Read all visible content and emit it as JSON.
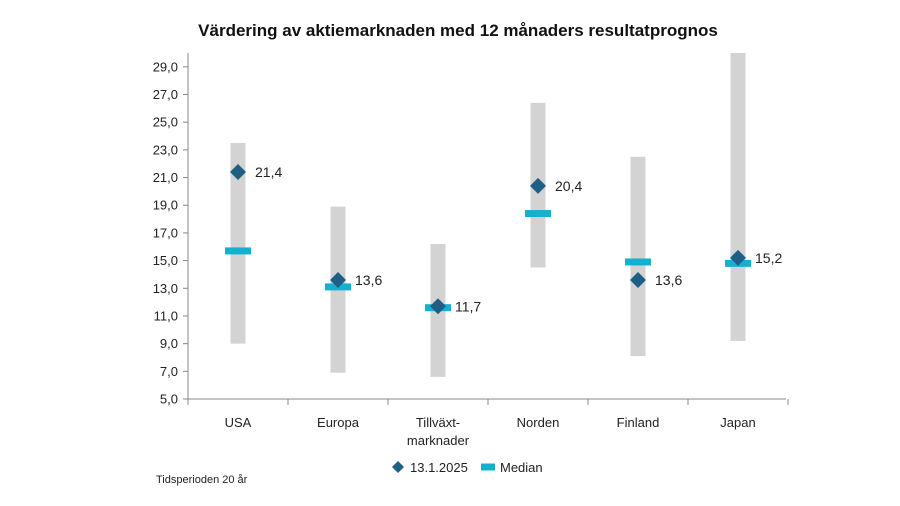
{
  "chart_data": {
    "type": "scatter",
    "title": "Värdering av aktiemarknaden med 12 månaders resultatprognos",
    "categories": [
      {
        "label": [
          "USA"
        ]
      },
      {
        "label": [
          "Europa"
        ]
      },
      {
        "label": [
          "Tillväxt-",
          "marknader"
        ]
      },
      {
        "label": [
          "Norden"
        ]
      },
      {
        "label": [
          "Finland"
        ]
      },
      {
        "label": [
          "Japan"
        ]
      }
    ],
    "ranges": [
      {
        "low": 9.0,
        "high": 23.5
      },
      {
        "low": 6.9,
        "high": 18.9
      },
      {
        "low": 6.6,
        "high": 16.2
      },
      {
        "low": 14.5,
        "high": 26.4
      },
      {
        "low": 8.1,
        "high": 22.5
      },
      {
        "low": 9.2,
        "high": 30.0
      }
    ],
    "series": [
      {
        "name": "13.1.2025",
        "marker": "diamond",
        "color": "#1f5f86",
        "values": [
          21.4,
          13.6,
          11.7,
          20.4,
          13.6,
          15.2
        ],
        "labels": [
          "21,4",
          "13,6",
          "11,7",
          "20,4",
          "13,6",
          "15,2"
        ]
      },
      {
        "name": "Median",
        "marker": "dash",
        "color": "#15b0cf",
        "values": [
          15.7,
          13.1,
          11.6,
          18.4,
          14.9,
          14.8
        ]
      }
    ],
    "ylim": [
      5.0,
      30.0
    ],
    "yticks": [
      5,
      7,
      9,
      11,
      13,
      15,
      17,
      19,
      21,
      23,
      25,
      27,
      29
    ],
    "ytick_labels": [
      "5,0",
      "7,0",
      "9,0",
      "11,0",
      "13,0",
      "15,0",
      "17,0",
      "19,0",
      "21,0",
      "23,0",
      "25,0",
      "27,0",
      "29,0"
    ],
    "range_color": "#d3d3d3",
    "grid": false,
    "legend_position": "bottom"
  },
  "footnote": "Tidsperioden 20 år"
}
